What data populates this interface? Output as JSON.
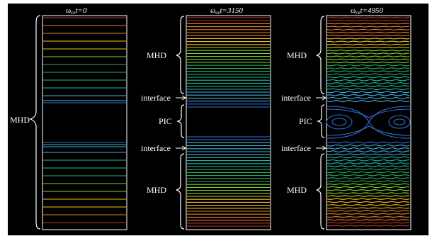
{
  "panels": [
    {
      "title_omega": "ω",
      "title_sub": "ce",
      "title_rest": "t=0",
      "labels": {
        "mhd_full": "MHD"
      }
    },
    {
      "title_omega": "ω",
      "title_sub": "ce",
      "title_rest": "t=3150",
      "labels": {
        "mhd_top": "MHD",
        "interface_top": "interface",
        "pic": "PIC",
        "interface_bottom": "interface",
        "mhd_bottom": "MHD"
      }
    },
    {
      "title_omega": "ω",
      "title_sub": "ce",
      "title_rest": "t=4950",
      "labels": {
        "mhd_top": "MHD",
        "interface_top": "interface",
        "pic": "PIC",
        "interface_bottom": "interface",
        "mhd_bottom": "MHD"
      }
    }
  ],
  "colors": {
    "background": "#000000",
    "frame": "#ffffff",
    "colormap": [
      "#c0392b",
      "#e67e22",
      "#f1c40f",
      "#7ed321",
      "#27ae60",
      "#1abc9c",
      "#3fb0e0",
      "#2f6fd8",
      "#2c3fc9"
    ]
  }
}
